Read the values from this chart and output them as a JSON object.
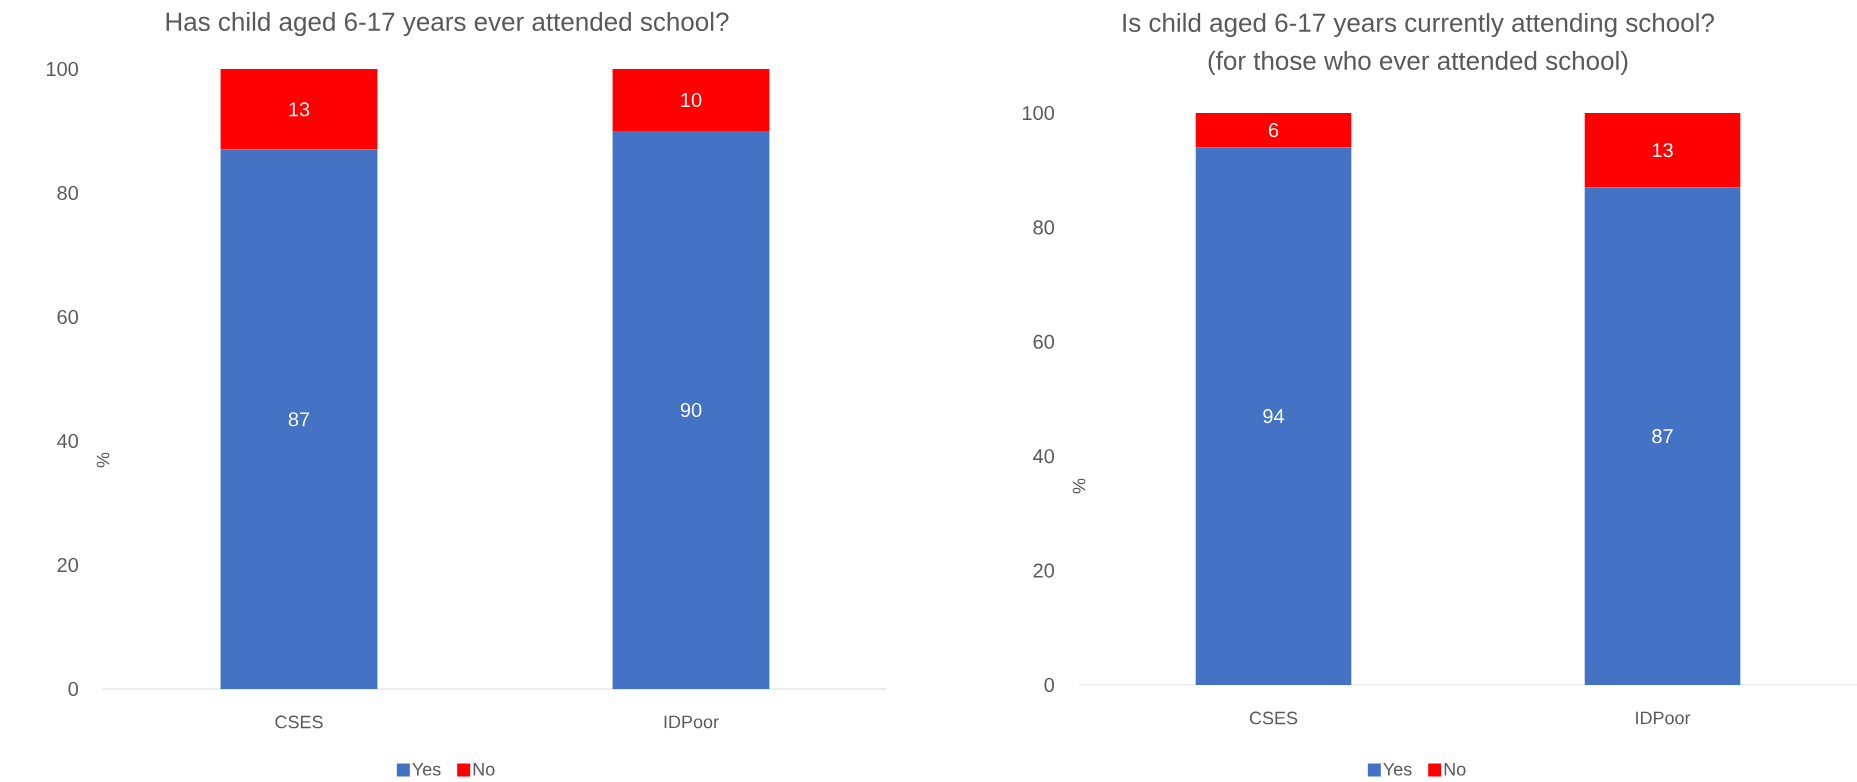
{
  "chart_data": [
    {
      "type": "bar",
      "title": "Has child aged 6-17 years ever attended school?",
      "ylabel": "%",
      "categories": [
        "CSES",
        "IDPoor"
      ],
      "stacked": true,
      "series": [
        {
          "name": "Yes",
          "color": "#4472c4",
          "values": [
            87,
            90
          ]
        },
        {
          "name": "No",
          "color": "#ff0000",
          "values": [
            13,
            10
          ]
        }
      ],
      "ylim": [
        0,
        100
      ],
      "yticks": [
        0,
        20,
        40,
        60,
        80,
        100
      ],
      "data_labels": true,
      "legend": "bottom"
    },
    {
      "type": "bar",
      "title": "Is child aged 6-17 years currently attending school?",
      "subtitle": "(for those who ever attended school)",
      "ylabel": "%",
      "categories": [
        "CSES",
        "IDPoor"
      ],
      "stacked": true,
      "series": [
        {
          "name": "Yes",
          "color": "#4472c4",
          "values": [
            94,
            87
          ]
        },
        {
          "name": "No",
          "color": "#ff0000",
          "values": [
            6,
            13
          ]
        }
      ],
      "ylim": [
        0,
        100
      ],
      "yticks": [
        0,
        20,
        40,
        60,
        80,
        100
      ],
      "data_labels": true,
      "legend": "bottom"
    }
  ]
}
